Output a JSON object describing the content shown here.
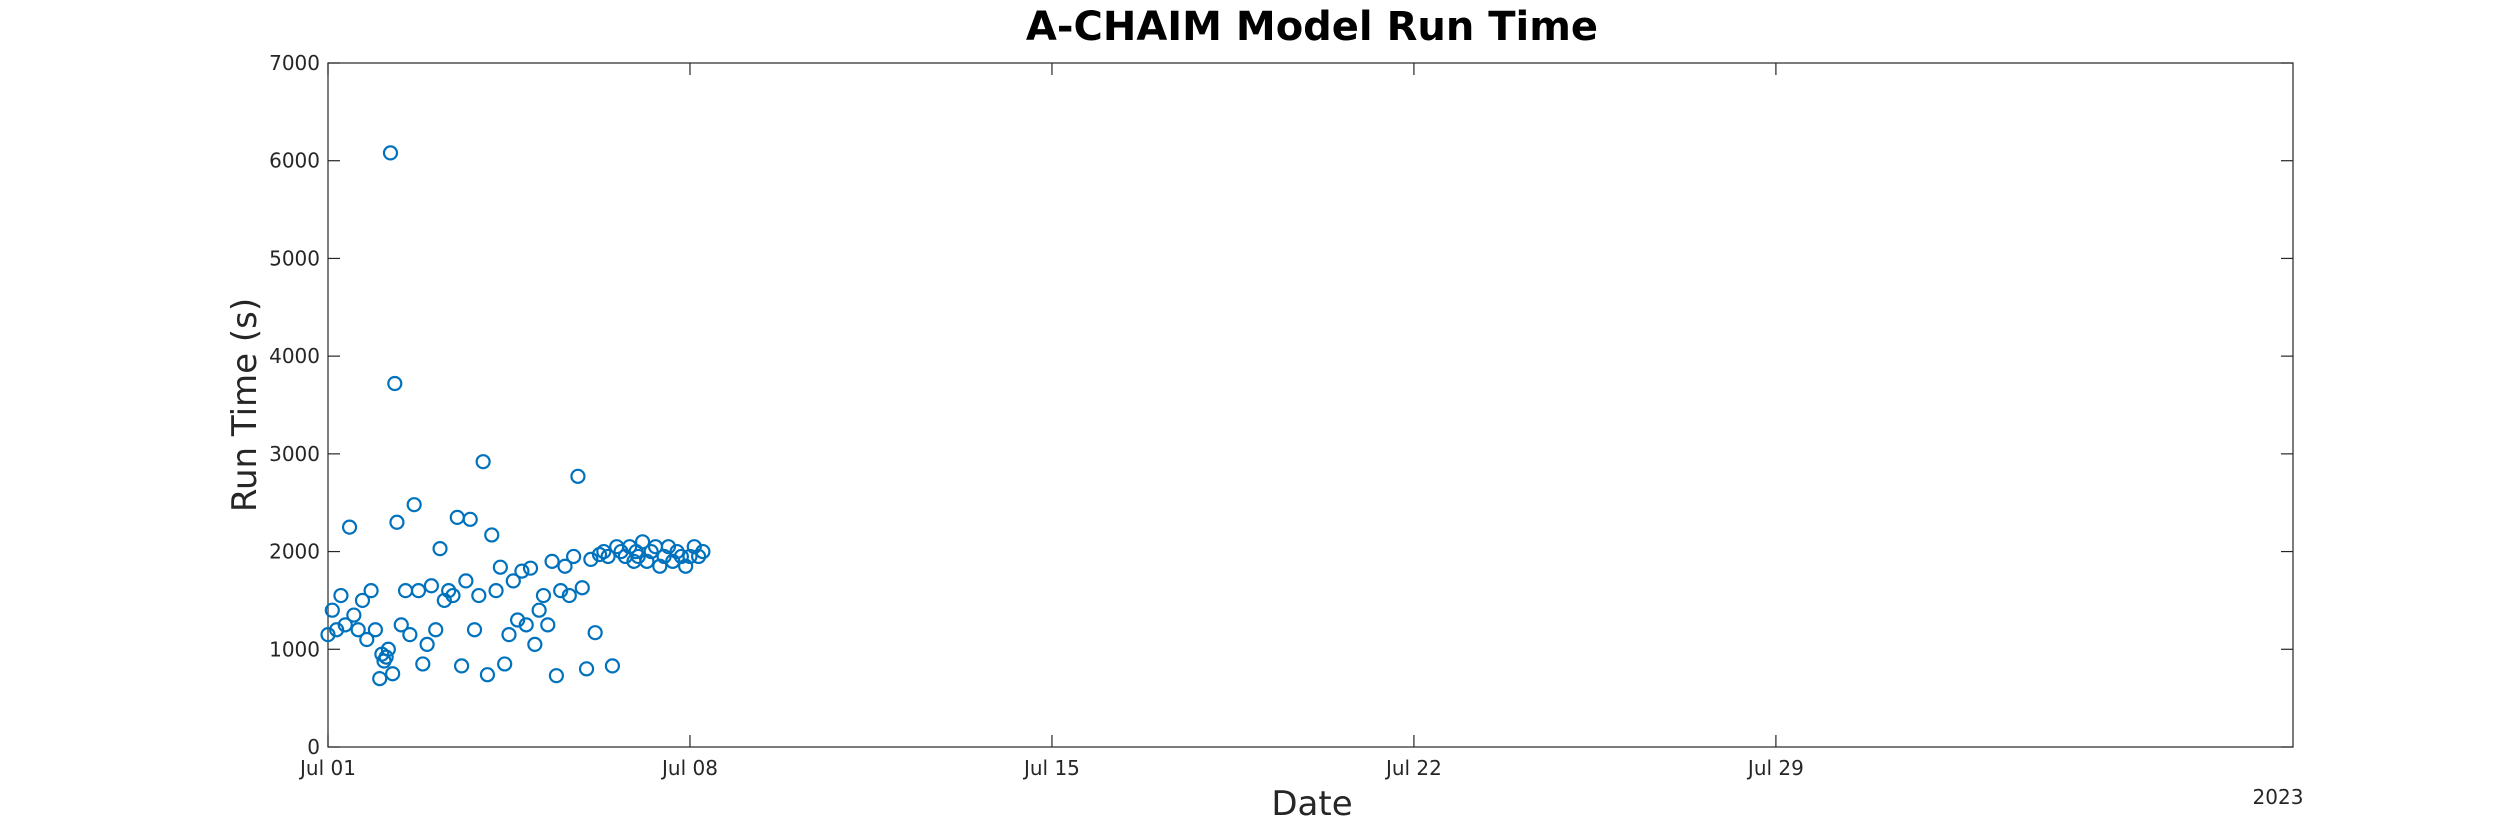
{
  "chart_data": {
    "type": "scatter",
    "title": "A-CHAIM Model Run Time",
    "xlabel": "Date",
    "ylabel": "Run Time (s)",
    "year_label": "2023",
    "x_axis": {
      "type": "date",
      "range": [
        "2023-07-01",
        "2023-08-08"
      ],
      "ticks": [
        {
          "label": "Jul 01",
          "date": "2023-07-01"
        },
        {
          "label": "Jul 08",
          "date": "2023-07-08"
        },
        {
          "label": "Jul 15",
          "date": "2023-07-15"
        },
        {
          "label": "Jul 22",
          "date": "2023-07-22"
        },
        {
          "label": "Jul 29",
          "date": "2023-07-29"
        }
      ]
    },
    "y_axis": {
      "range": [
        0,
        7000
      ],
      "ticks": [
        0,
        1000,
        2000,
        3000,
        4000,
        5000,
        6000,
        7000
      ]
    },
    "grid": false,
    "marker": "circle-open",
    "color": "#0072BD",
    "points": [
      [
        "2023-07-01 00:00",
        1150
      ],
      [
        "2023-07-01 02:00",
        1400
      ],
      [
        "2023-07-01 04:00",
        1200
      ],
      [
        "2023-07-01 06:00",
        1550
      ],
      [
        "2023-07-01 08:00",
        1250
      ],
      [
        "2023-07-01 10:00",
        2250
      ],
      [
        "2023-07-01 12:00",
        1350
      ],
      [
        "2023-07-01 14:00",
        1200
      ],
      [
        "2023-07-01 16:00",
        1500
      ],
      [
        "2023-07-01 18:00",
        1100
      ],
      [
        "2023-07-01 20:00",
        1600
      ],
      [
        "2023-07-01 22:00",
        1200
      ],
      [
        "2023-07-02 00:00",
        700
      ],
      [
        "2023-07-02 01:00",
        950
      ],
      [
        "2023-07-02 02:00",
        880
      ],
      [
        "2023-07-02 03:00",
        920
      ],
      [
        "2023-07-02 04:00",
        1000
      ],
      [
        "2023-07-02 05:00",
        6080
      ],
      [
        "2023-07-02 06:00",
        750
      ],
      [
        "2023-07-02 07:00",
        3720
      ],
      [
        "2023-07-02 08:00",
        2300
      ],
      [
        "2023-07-02 10:00",
        1250
      ],
      [
        "2023-07-02 12:00",
        1600
      ],
      [
        "2023-07-02 14:00",
        1150
      ],
      [
        "2023-07-02 16:00",
        2480
      ],
      [
        "2023-07-02 18:00",
        1600
      ],
      [
        "2023-07-02 20:00",
        850
      ],
      [
        "2023-07-02 22:00",
        1050
      ],
      [
        "2023-07-03 00:00",
        1650
      ],
      [
        "2023-07-03 02:00",
        1200
      ],
      [
        "2023-07-03 04:00",
        2030
      ],
      [
        "2023-07-03 06:00",
        1500
      ],
      [
        "2023-07-03 08:00",
        1600
      ],
      [
        "2023-07-03 10:00",
        1550
      ],
      [
        "2023-07-03 12:00",
        2350
      ],
      [
        "2023-07-03 14:00",
        830
      ],
      [
        "2023-07-03 16:00",
        1700
      ],
      [
        "2023-07-03 18:00",
        2330
      ],
      [
        "2023-07-03 20:00",
        1200
      ],
      [
        "2023-07-03 22:00",
        1550
      ],
      [
        "2023-07-04 00:00",
        2920
      ],
      [
        "2023-07-04 02:00",
        740
      ],
      [
        "2023-07-04 04:00",
        2170
      ],
      [
        "2023-07-04 06:00",
        1600
      ],
      [
        "2023-07-04 08:00",
        1840
      ],
      [
        "2023-07-04 10:00",
        850
      ],
      [
        "2023-07-04 12:00",
        1150
      ],
      [
        "2023-07-04 14:00",
        1700
      ],
      [
        "2023-07-04 16:00",
        1300
      ],
      [
        "2023-07-04 18:00",
        1800
      ],
      [
        "2023-07-04 20:00",
        1250
      ],
      [
        "2023-07-04 22:00",
        1830
      ],
      [
        "2023-07-05 00:00",
        1050
      ],
      [
        "2023-07-05 02:00",
        1400
      ],
      [
        "2023-07-05 04:00",
        1550
      ],
      [
        "2023-07-05 06:00",
        1250
      ],
      [
        "2023-07-05 08:00",
        1900
      ],
      [
        "2023-07-05 10:00",
        730
      ],
      [
        "2023-07-05 12:00",
        1600
      ],
      [
        "2023-07-05 14:00",
        1850
      ],
      [
        "2023-07-05 16:00",
        1550
      ],
      [
        "2023-07-05 18:00",
        1950
      ],
      [
        "2023-07-05 20:00",
        2770
      ],
      [
        "2023-07-05 22:00",
        1630
      ],
      [
        "2023-07-06 00:00",
        800
      ],
      [
        "2023-07-06 02:00",
        1920
      ],
      [
        "2023-07-06 04:00",
        1170
      ],
      [
        "2023-07-06 06:00",
        1970
      ],
      [
        "2023-07-06 08:00",
        2000
      ],
      [
        "2023-07-06 10:00",
        1950
      ],
      [
        "2023-07-06 12:00",
        830
      ],
      [
        "2023-07-06 14:00",
        2050
      ],
      [
        "2023-07-06 16:00",
        2000
      ],
      [
        "2023-07-06 18:00",
        1950
      ],
      [
        "2023-07-06 20:00",
        2050
      ],
      [
        "2023-07-06 22:00",
        1900
      ],
      [
        "2023-07-06 23:00",
        2000
      ],
      [
        "2023-07-07 00:00",
        1950
      ],
      [
        "2023-07-07 02:00",
        2100
      ],
      [
        "2023-07-07 04:00",
        1900
      ],
      [
        "2023-07-07 06:00",
        2000
      ],
      [
        "2023-07-07 08:00",
        2050
      ],
      [
        "2023-07-07 10:00",
        1850
      ],
      [
        "2023-07-07 12:00",
        1950
      ],
      [
        "2023-07-07 14:00",
        2050
      ],
      [
        "2023-07-07 16:00",
        1900
      ],
      [
        "2023-07-07 18:00",
        2000
      ],
      [
        "2023-07-07 20:00",
        1950
      ],
      [
        "2023-07-07 22:00",
        1850
      ],
      [
        "2023-07-08 00:00",
        1950
      ],
      [
        "2023-07-08 02:00",
        2050
      ],
      [
        "2023-07-08 04:00",
        1950
      ],
      [
        "2023-07-08 06:00",
        2000
      ]
    ]
  }
}
